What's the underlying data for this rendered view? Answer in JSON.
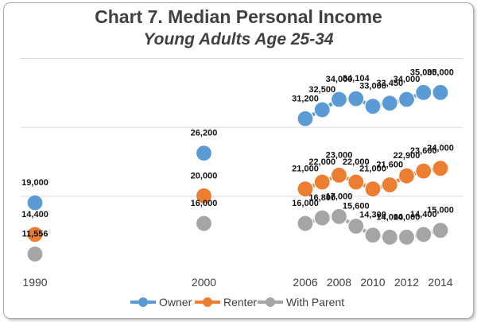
{
  "chart_data": {
    "type": "line",
    "title": "Chart 7. Median Personal Income",
    "subtitle": "Young Adults Age 25-34",
    "xlabel": "",
    "ylabel": "",
    "x_tick_labels": [
      "1990",
      "2000",
      "2006",
      "2008",
      "2010",
      "2012",
      "2014"
    ],
    "x_range": [
      1990,
      2014
    ],
    "ylim": [
      10000,
      40000
    ],
    "grid": true,
    "legend_position": "bottom",
    "series": [
      {
        "name": "Owner",
        "color": "#5b9bd5",
        "points": [
          {
            "x": 1990,
            "y": 19000,
            "label": "19,000"
          },
          {
            "x": 2000,
            "y": 26200,
            "label": "26,200"
          },
          {
            "x": 2006,
            "y": 31200,
            "label": "31,200"
          },
          {
            "x": 2007,
            "y": 32500,
            "label": "32,500"
          },
          {
            "x": 2008,
            "y": 34000,
            "label": "34,000"
          },
          {
            "x": 2009,
            "y": 34104,
            "label": "34,104"
          },
          {
            "x": 2010,
            "y": 33000,
            "label": "33,000"
          },
          {
            "x": 2011,
            "y": 33450,
            "label": "33,450"
          },
          {
            "x": 2012,
            "y": 34000,
            "label": "34,000"
          },
          {
            "x": 2013,
            "y": 35000,
            "label": "35,000"
          },
          {
            "x": 2014,
            "y": 35000,
            "label": "35,000"
          }
        ]
      },
      {
        "name": "Renter",
        "color": "#ed7d31",
        "points": [
          {
            "x": 1990,
            "y": 14400,
            "label": "14,400"
          },
          {
            "x": 2000,
            "y": 20000,
            "label": "20,000"
          },
          {
            "x": 2006,
            "y": 21000,
            "label": "21,000"
          },
          {
            "x": 2007,
            "y": 22000,
            "label": "22,000"
          },
          {
            "x": 2008,
            "y": 23000,
            "label": "23,000"
          },
          {
            "x": 2009,
            "y": 22000,
            "label": "22,000"
          },
          {
            "x": 2010,
            "y": 21000,
            "label": "21,000"
          },
          {
            "x": 2011,
            "y": 21600,
            "label": "21,600"
          },
          {
            "x": 2012,
            "y": 22900,
            "label": "22,900"
          },
          {
            "x": 2013,
            "y": 23600,
            "label": "23,600"
          },
          {
            "x": 2014,
            "y": 24000,
            "label": "24,000"
          }
        ]
      },
      {
        "name": "With Parent",
        "color": "#a5a5a5",
        "points": [
          {
            "x": 1990,
            "y": 11556,
            "label": "11,556"
          },
          {
            "x": 2000,
            "y": 16000,
            "label": "16,000"
          },
          {
            "x": 2006,
            "y": 16000,
            "label": "16,000"
          },
          {
            "x": 2007,
            "y": 16800,
            "label": "16,800"
          },
          {
            "x": 2008,
            "y": 17000,
            "label": "17,000"
          },
          {
            "x": 2009,
            "y": 15600,
            "label": "15,600"
          },
          {
            "x": 2010,
            "y": 14300,
            "label": "14,300"
          },
          {
            "x": 2011,
            "y": 14000,
            "label": "14,000"
          },
          {
            "x": 2012,
            "y": 14000,
            "label": "14,000"
          },
          {
            "x": 2013,
            "y": 14400,
            "label": "14,400"
          },
          {
            "x": 2014,
            "y": 15000,
            "label": "15,000"
          }
        ]
      }
    ]
  }
}
